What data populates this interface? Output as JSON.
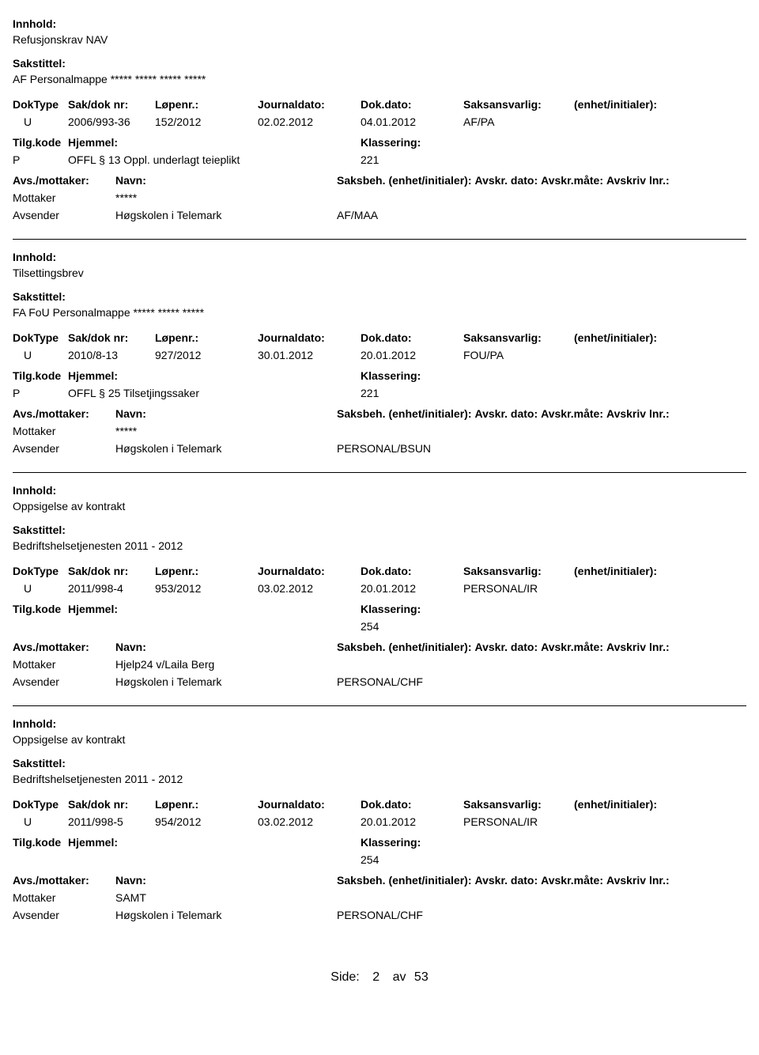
{
  "labels": {
    "innhold": "Innhold:",
    "sakstittel": "Sakstittel:",
    "doktype": "DokType",
    "sakdoknr": "Sak/dok nr:",
    "lopenr": "Løpenr.:",
    "journaldato": "Journaldato:",
    "dokdato": "Dok.dato:",
    "saksansvarlig": "Saksansvarlig:",
    "enhet_init": "(enhet/initialer):",
    "tilgkode": "Tilg.kode",
    "hjemmel": "Hjemmel:",
    "klassering": "Klassering:",
    "avs_mottaker": "Avs./mottaker:",
    "navn": "Navn:",
    "saksbeh": "Saksbeh.",
    "saksbeh_enhet": "(enhet/initialer):",
    "avskr_dato": "Avskr. dato:",
    "avskr_mate": "Avskr.måte:",
    "avskriv_lnr": "Avskriv lnr.:",
    "mottaker": "Mottaker",
    "avsender": "Avsender"
  },
  "records": [
    {
      "innhold": "Refusjonskrav NAV",
      "sakstittel": "AF Personalmappe ***** ***** ***** *****",
      "doktype": "U",
      "sakdoknr": "2006/993-36",
      "lopenr": "152/2012",
      "journaldato": "02.02.2012",
      "dokdato": "04.01.2012",
      "saksansvarlig": "AF/PA",
      "tilgkode": "P",
      "hjemmel": "OFFL § 13 Oppl. underlagt teieplikt",
      "klassering": "221",
      "mottaker_navn": "*****",
      "avsender_navn": "Høgskolen i Telemark",
      "saksbeh_unit": "AF/MAA"
    },
    {
      "innhold": "Tilsettingsbrev",
      "sakstittel": "FA FoU Personalmappe ***** ***** *****",
      "doktype": "U",
      "sakdoknr": "2010/8-13",
      "lopenr": "927/2012",
      "journaldato": "30.01.2012",
      "dokdato": "20.01.2012",
      "saksansvarlig": "FOU/PA",
      "tilgkode": "P",
      "hjemmel": "OFFL § 25 Tilsetjingssaker",
      "klassering": "221",
      "mottaker_navn": "*****",
      "avsender_navn": "Høgskolen i Telemark",
      "saksbeh_unit": "PERSONAL/BSUN"
    },
    {
      "innhold": "Oppsigelse av kontrakt",
      "sakstittel": "Bedriftshelsetjenesten 2011 - 2012",
      "doktype": "U",
      "sakdoknr": "2011/998-4",
      "lopenr": "953/2012",
      "journaldato": "03.02.2012",
      "dokdato": "20.01.2012",
      "saksansvarlig": "PERSONAL/IR",
      "tilgkode": "",
      "hjemmel": "",
      "klassering": "254",
      "mottaker_navn": "Hjelp24 v/Laila Berg",
      "avsender_navn": "Høgskolen i Telemark",
      "saksbeh_unit": "PERSONAL/CHF"
    },
    {
      "innhold": "Oppsigelse av kontrakt",
      "sakstittel": "Bedriftshelsetjenesten 2011 - 2012",
      "doktype": "U",
      "sakdoknr": "2011/998-5",
      "lopenr": "954/2012",
      "journaldato": "03.02.2012",
      "dokdato": "20.01.2012",
      "saksansvarlig": "PERSONAL/IR",
      "tilgkode": "",
      "hjemmel": "",
      "klassering": "254",
      "mottaker_navn": "SAMT",
      "avsender_navn": "Høgskolen i Telemark",
      "saksbeh_unit": "PERSONAL/CHF"
    }
  ],
  "footer": {
    "label": "Side:",
    "current": "2",
    "sep": "av",
    "total": "53"
  }
}
